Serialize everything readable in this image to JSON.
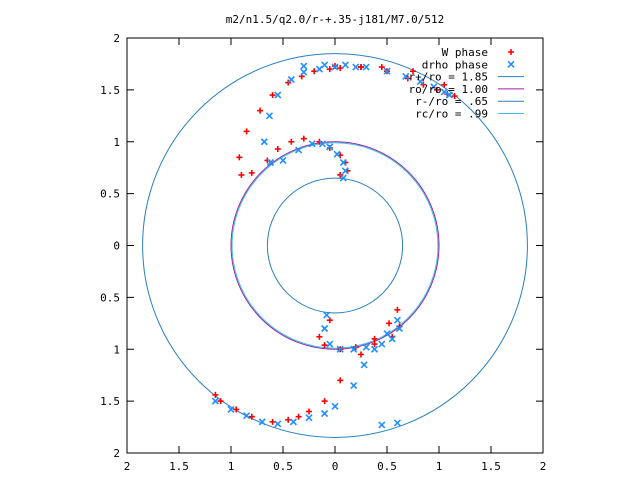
{
  "chart_data": {
    "type": "scatter",
    "title": "m2/n1.5/q2.0/r-+.35-j181/M7.0/512",
    "xlabel": "",
    "ylabel": "",
    "xlim": [
      -2,
      2
    ],
    "ylim": [
      -2,
      2
    ],
    "x_tick_labels": [
      "2",
      "1.5",
      "1",
      "0.5",
      "0",
      "0.5",
      "1",
      "1.5",
      "2"
    ],
    "y_tick_labels": [
      "2",
      "1.5",
      "1",
      "0.5",
      "0",
      "0.5",
      "1",
      "1.5",
      "2"
    ],
    "grid": false,
    "legend_position": "top-right",
    "series": [
      {
        "name": "W phase",
        "kind": "points",
        "marker": "+",
        "color": "#ff0000",
        "x": [
          0.0,
          0.25,
          0.5,
          0.7,
          0.85,
          0.98,
          1.08,
          1.15,
          1.05,
          0.75,
          0.45,
          0.25,
          0.05,
          -0.05,
          -0.2,
          -0.32,
          -0.45,
          -0.6,
          -0.72,
          -0.85,
          -0.92,
          -0.9,
          -0.8,
          -0.65,
          -0.55,
          -0.42,
          -0.3,
          -0.15,
          -0.05,
          0.05,
          0.1,
          0.12,
          0.05,
          -0.05,
          -0.15,
          -0.1,
          0.05,
          0.2,
          0.38,
          0.55,
          0.62,
          0.6,
          0.52,
          0.38,
          0.25,
          0.05,
          -0.1,
          -0.25,
          -0.35,
          -0.45,
          -0.6,
          -0.8,
          -0.95,
          -1.1,
          -1.15
        ],
        "y": [
          1.73,
          1.72,
          1.68,
          1.61,
          1.55,
          1.5,
          1.46,
          1.44,
          1.55,
          1.68,
          1.72,
          1.72,
          1.71,
          1.7,
          1.68,
          1.63,
          1.57,
          1.45,
          1.3,
          1.1,
          0.85,
          0.68,
          0.7,
          0.82,
          0.93,
          1.0,
          1.03,
          1.0,
          0.94,
          0.87,
          0.8,
          0.72,
          0.68,
          -0.72,
          -0.88,
          -0.96,
          -1.0,
          -0.98,
          -0.95,
          -0.88,
          -0.78,
          -0.62,
          -0.75,
          -0.9,
          -1.05,
          -1.3,
          -1.5,
          -1.6,
          -1.65,
          -1.68,
          -1.7,
          -1.65,
          -1.58,
          -1.5,
          -1.44
        ]
      },
      {
        "name": "drho phase",
        "kind": "points",
        "marker": "x",
        "color": "#2090ff",
        "x": [
          -0.3,
          -0.1,
          0.1,
          0.3,
          0.5,
          0.68,
          0.82,
          0.95,
          1.05,
          1.1,
          0.2,
          0.0,
          -0.15,
          -0.3,
          -0.42,
          -0.55,
          -0.63,
          -0.68,
          -0.62,
          -0.5,
          -0.35,
          -0.22,
          -0.12,
          -0.05,
          0.02,
          0.08,
          0.1,
          0.08,
          -0.08,
          -0.1,
          -0.05,
          0.05,
          0.18,
          0.3,
          0.45,
          0.55,
          0.62,
          0.6,
          0.5,
          0.38,
          0.28,
          0.18,
          0.0,
          -0.1,
          -0.25,
          -0.4,
          -0.55,
          -0.7,
          -0.85,
          -1.0,
          -1.15,
          0.45,
          0.6
        ],
        "y": [
          1.73,
          1.74,
          1.74,
          1.72,
          1.68,
          1.63,
          1.58,
          1.53,
          1.48,
          1.45,
          1.72,
          1.72,
          1.7,
          1.67,
          1.6,
          1.45,
          1.25,
          1.0,
          0.8,
          0.82,
          0.92,
          0.98,
          0.98,
          0.95,
          0.88,
          0.8,
          0.72,
          0.65,
          -0.67,
          -0.8,
          -0.95,
          -1.0,
          -1.0,
          -0.98,
          -0.95,
          -0.9,
          -0.8,
          -0.72,
          -0.85,
          -1.0,
          -1.15,
          -1.35,
          -1.55,
          -1.62,
          -1.66,
          -1.7,
          -1.72,
          -1.7,
          -1.64,
          -1.58,
          -1.5,
          -1.73,
          -1.71
        ]
      },
      {
        "name": "r+/ro = 1.85",
        "kind": "circle",
        "radius": 1.85,
        "color": "#2a7fbf"
      },
      {
        "name": "ro/ro = 1.00",
        "kind": "circle",
        "radius": 1.0,
        "color": "#a020a0"
      },
      {
        "name": "r-/ro = .65",
        "kind": "circle",
        "radius": 0.65,
        "color": "#2a7fbf"
      },
      {
        "name": "rc/ro = .99",
        "kind": "circle",
        "radius": 0.99,
        "color": "#40c0e0"
      }
    ]
  }
}
